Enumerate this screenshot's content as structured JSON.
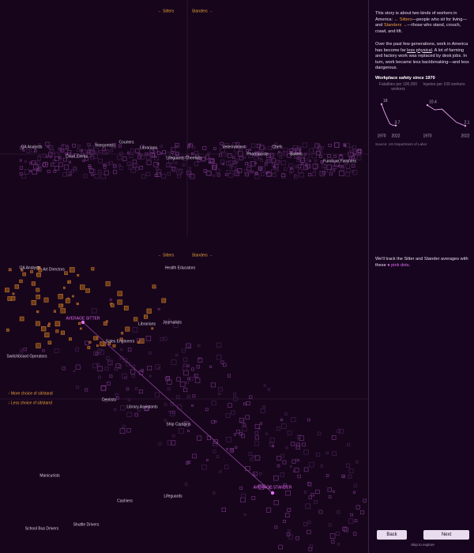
{
  "top_chart": {
    "sitters_label": "← Sitters",
    "standers_label": "Standers →",
    "occupations": [
      "QA Analysts",
      "Court Clerks",
      "Interpreters",
      "Couriers",
      "Librarians",
      "Lifeguards",
      "Chemists",
      "Veterinarians",
      "Pharmacists",
      "Chefs",
      "Bakers",
      "Furniture Finishers"
    ]
  },
  "bottom_chart": {
    "sitters_label": "← Sitters",
    "standers_label": "Standers →",
    "more_choice": "↑ More choice of sit/stand",
    "less_choice": "↓ Less choice of sit/stand",
    "occupations": [
      "QA Analysts",
      "Art Directors",
      "Health Educators",
      "Librarians",
      "Journalists",
      "Sales Engineers",
      "Switchboard Operators",
      "Dentists",
      "Library Assistants",
      "Ship Captains",
      "Manicurists",
      "Cashiers",
      "Lifeguards",
      "School Bus Drivers",
      "Shuttle Drivers"
    ],
    "average_sitter": "AVERAGE SITTER",
    "average_stander": "AVERAGE STANDER"
  },
  "story": {
    "paragraph_1": [
      "This story is about two kinds of workers in America: ",
      "← Sitters",
      "—people who sit for living—and ",
      "Standers →",
      "—those who stand, crouch, crawl, and lift."
    ],
    "paragraph_2": [
      "Over the past few generations, work in America has become far ",
      "less physical",
      ". A lot of farming and factory work was replaced by desk jobs. In turn, work became less backbreaking—and less dangerous."
    ],
    "paragraph_3": [
      "We'll track the Sitter and Stander averages with these ",
      "● pink dots",
      "."
    ],
    "back": "Back",
    "next": "Next",
    "skip": "Skip to explore"
  },
  "chart_data": {
    "type": "line",
    "title": "Workplace safety since 1970",
    "source": "Source: US Department of Labor",
    "panels": [
      {
        "name": "Fatalities per 100,000 workers",
        "color": "#e7a6e8",
        "x": [
          1970,
          1980,
          1990,
          2000,
          2010,
          2022
        ],
        "values": [
          18,
          13,
          9,
          5,
          4,
          3.7
        ],
        "xlim": [
          1970,
          2022
        ],
        "xticks": [
          1970,
          2022
        ],
        "ylim": [
          0,
          20
        ]
      },
      {
        "name": "Injuries per 100 workers",
        "color": "#e7a6e8",
        "x": [
          1970,
          1980,
          1990,
          2000,
          2010,
          2022
        ],
        "values": [
          10.4,
          8.5,
          8.8,
          6.1,
          3.5,
          2.1
        ],
        "xlim": [
          1970,
          2022
        ],
        "xticks": [
          1970,
          2022
        ],
        "ylim": [
          0,
          12
        ]
      }
    ]
  }
}
